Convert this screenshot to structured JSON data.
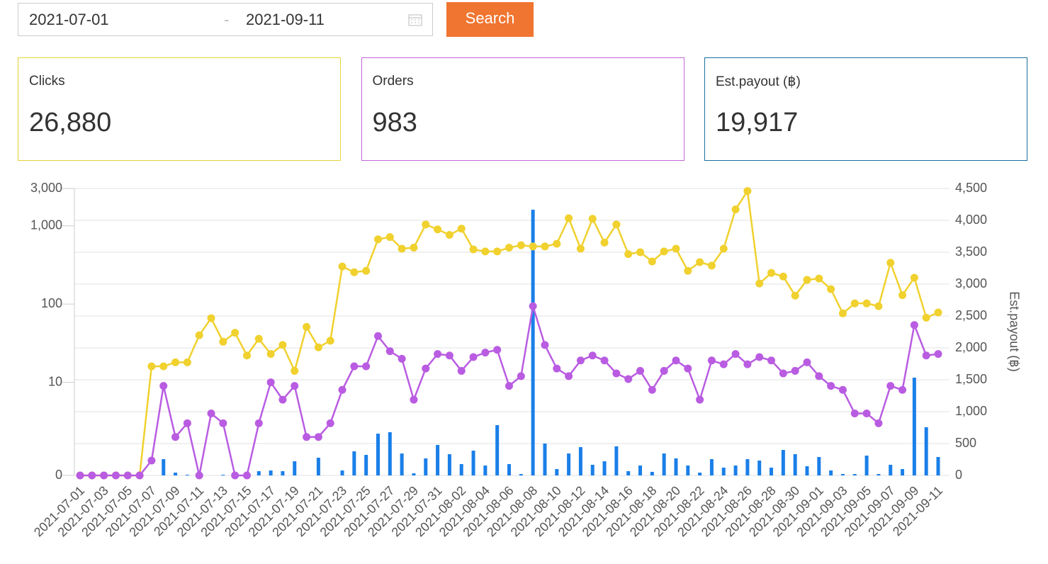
{
  "filter": {
    "start_date": "2021-07-01",
    "separator": "-",
    "end_date": "2021-09-11",
    "button": "Search"
  },
  "cards": [
    {
      "label": "Clicks",
      "value": "26,880",
      "color": "#e8d33a"
    },
    {
      "label": "Orders",
      "value": "983",
      "color": "#c266d8"
    },
    {
      "label": "Est.payout (฿)",
      "value": "19,917",
      "color": "#1a6f9e"
    }
  ],
  "chart_data": {
    "type": "combo",
    "categories": [
      "2021-07-01",
      null,
      "2021-07-03",
      null,
      "2021-07-05",
      null,
      "2021-07-07",
      null,
      "2021-07-09",
      null,
      "2021-07-11",
      null,
      "2021-07-13",
      null,
      "2021-07-15",
      null,
      "2021-07-17",
      null,
      "2021-07-19",
      null,
      "2021-07-21",
      null,
      "2021-07-23",
      null,
      "2021-07-25",
      null,
      "2021-07-27",
      null,
      "2021-07-29",
      null,
      "2021-07-31",
      null,
      "2021-08-02",
      null,
      "2021-08-04",
      null,
      "2021-08-06",
      null,
      "2021-08-08",
      null,
      "2021-08-10",
      null,
      "2021-08-12",
      null,
      "2021-08-14",
      null,
      "2021-08-16",
      null,
      "2021-08-18",
      null,
      "2021-08-20",
      null,
      "2021-08-22",
      null,
      "2021-08-24",
      null,
      "2021-08-26",
      null,
      "2021-08-28",
      null,
      "2021-08-30",
      null,
      "2021-09-01",
      null,
      "2021-09-03",
      null,
      "2021-09-05",
      null,
      "2021-09-07",
      null,
      "2021-09-09",
      null,
      "2021-09-11"
    ],
    "series": [
      {
        "type": "bar",
        "axis": "y2",
        "color": "#1a7fe8",
        "values": [
          0,
          0,
          0,
          0,
          0,
          0,
          0,
          255,
          44,
          11,
          0,
          0,
          11,
          0,
          0,
          67,
          78,
          67,
          222,
          0,
          278,
          0,
          78,
          378,
          322,
          655,
          678,
          344,
          33,
          267,
          478,
          333,
          178,
          389,
          156,
          789,
          178,
          22,
          4167,
          500,
          100,
          344,
          444,
          167,
          222,
          456,
          67,
          156,
          56,
          344,
          267,
          156,
          44,
          255,
          122,
          156,
          255,
          233,
          122,
          400,
          333,
          144,
          289,
          78,
          22,
          22,
          311,
          22,
          167,
          100,
          1533,
          756,
          289
        ]
      },
      {
        "type": "line",
        "axis": "y",
        "color": "#f0d12e",
        "values": [
          0,
          0,
          0,
          0,
          0,
          0,
          16,
          16,
          18,
          18,
          40,
          66,
          33,
          43,
          22,
          36,
          23,
          30,
          14,
          51,
          28,
          34,
          302,
          255,
          266,
          673,
          718,
          510,
          526,
          1040,
          900,
          765,
          920,
          500,
          470,
          470,
          526,
          565,
          545,
          545,
          590,
          1250,
          510,
          1230,
          610,
          1040,
          435,
          460,
          350,
          470,
          510,
          266,
          343,
          310,
          510,
          1620,
          2780,
          183,
          250,
          225,
          128,
          204,
          212,
          155,
          76,
          102,
          102,
          94,
          337,
          130,
          217,
          67,
          78
        ]
      },
      {
        "type": "line",
        "axis": "y",
        "color": "#b95ce2",
        "values": [
          0,
          0,
          0,
          0,
          0,
          0,
          1,
          9,
          2,
          3,
          0,
          4,
          3,
          0,
          0,
          3,
          10,
          6,
          9,
          2,
          2,
          3,
          8,
          16,
          16,
          39,
          25,
          20,
          6,
          15,
          23,
          22,
          14,
          21,
          24,
          26,
          9,
          12,
          94,
          30,
          15,
          12,
          19,
          22,
          19,
          13,
          11,
          14,
          8,
          14,
          19,
          15,
          6,
          19,
          17,
          23,
          17,
          21,
          19,
          13,
          14,
          18,
          12,
          9,
          8,
          4,
          4,
          3,
          9,
          8,
          54,
          22,
          23
        ]
      }
    ],
    "yscale": "log",
    "ylim": [
      0,
      3000
    ],
    "yticks": [
      0,
      10,
      100,
      {
        "value": 1000,
        "label": "1,000"
      },
      {
        "value": 3000,
        "label": "3,000"
      }
    ],
    "y2lim": [
      0,
      4500
    ],
    "y2ticks": [
      0,
      500,
      {
        "value": 1000,
        "label": "1,000"
      },
      {
        "value": 1500,
        "label": "1,500"
      },
      {
        "value": 2000,
        "label": "2,000"
      },
      {
        "value": 2500,
        "label": "2,500"
      },
      {
        "value": 3000,
        "label": "3,000"
      },
      {
        "value": 3500,
        "label": "3,500"
      },
      {
        "value": 4000,
        "label": "4,000"
      },
      {
        "value": 4500,
        "label": "4,500"
      }
    ],
    "y2label": "Est.payout (฿)",
    "grid": true
  }
}
